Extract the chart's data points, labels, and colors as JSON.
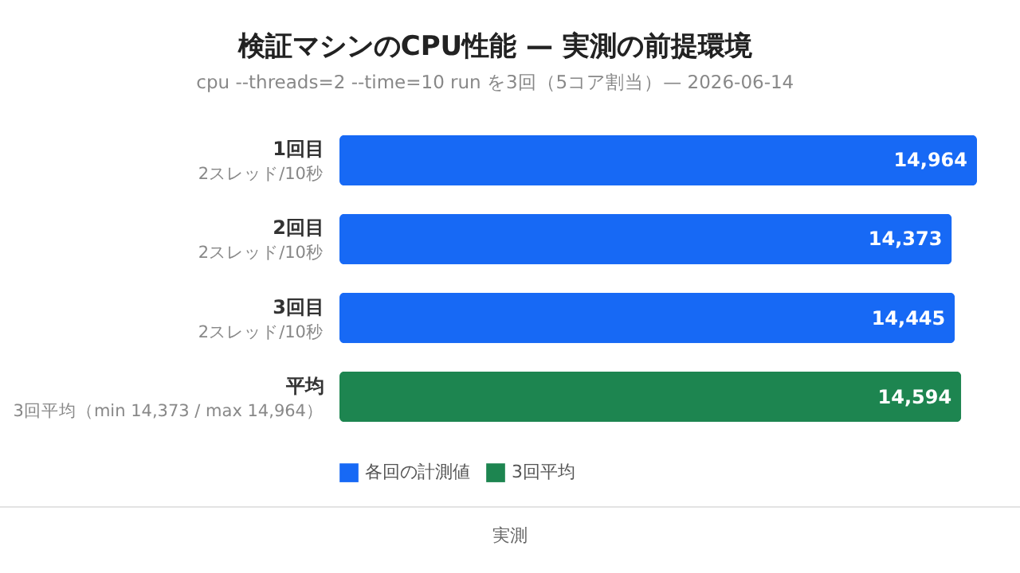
{
  "chart_data": {
    "type": "bar",
    "orientation": "horizontal",
    "title": "検証マシンのCPU性能 — 実測の前提環境",
    "subtitle": "cpu --threads=2 --time=10 run を3回（5コア割当）— 2026-06-14",
    "categories": [
      "1回目\n2スレッド/10秒",
      "2回目\n2スレッド/10秒",
      "3回目\n2スレッド/10秒",
      "平均\n3回平均（min 14,373 / max 14,964）"
    ],
    "series": [
      {
        "name": "各回の計測値",
        "color": "#1769f5",
        "values": [
          14964,
          14373,
          14445,
          null
        ],
        "value_labels": [
          "14,964",
          "14,373",
          "14,445",
          null
        ]
      },
      {
        "name": "3回平均",
        "color": "#1d8550",
        "values": [
          null,
          null,
          null,
          14594
        ],
        "value_labels": [
          null,
          null,
          null,
          "14,594"
        ]
      }
    ],
    "stacked": true,
    "legend": "bottom left",
    "annotations": [
      "実測"
    ]
  }
}
